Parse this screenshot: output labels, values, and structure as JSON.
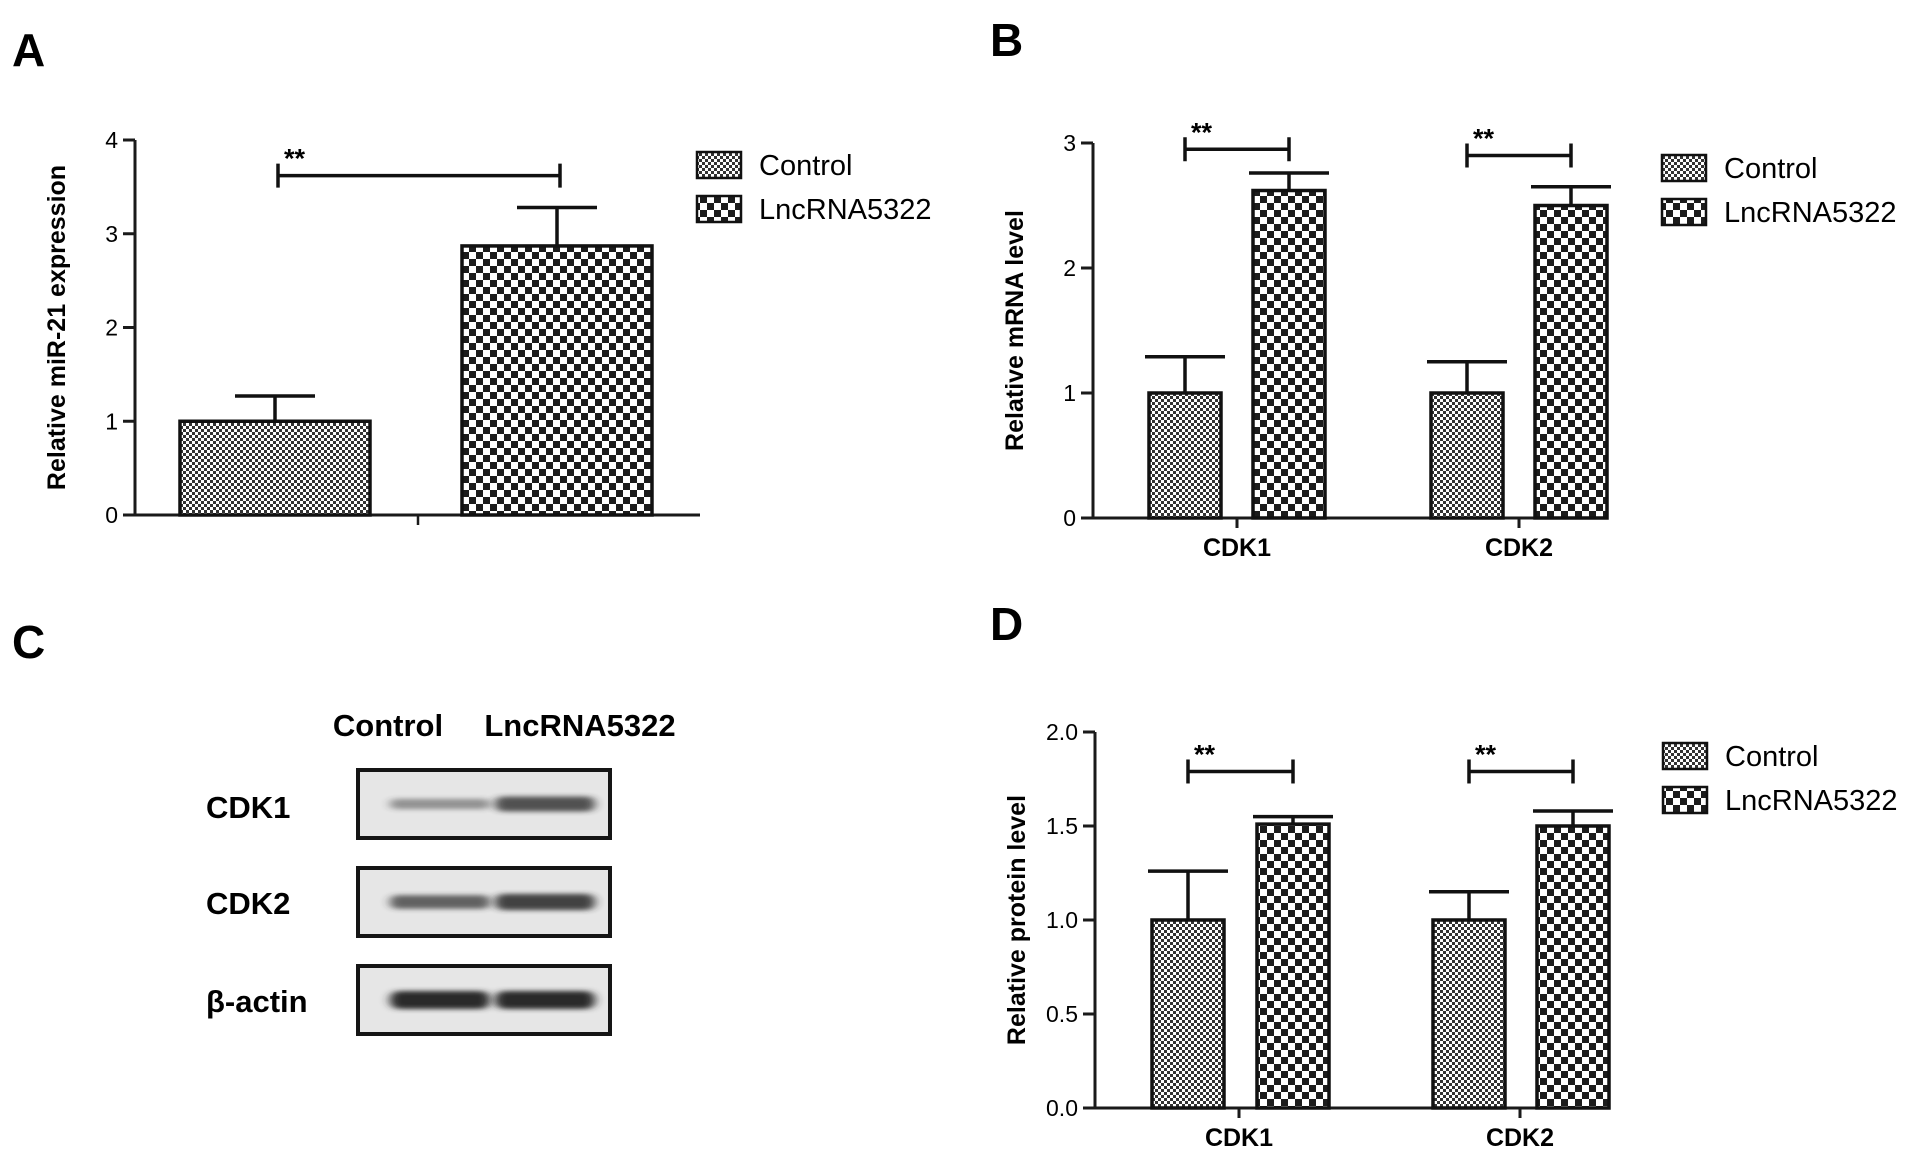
{
  "panels": {
    "a": "A",
    "b": "B",
    "c": "C",
    "d": "D"
  },
  "colors": {
    "axis": "#1a1a1a",
    "bar_edge": "#111111",
    "pattern_dark": "#333333",
    "pattern_light": "#ffffff",
    "blot_bg": "#e6e6e6",
    "band": "#2a2a2a"
  },
  "chart_data": [
    {
      "panel": "A",
      "type": "bar",
      "ylabel": "Relative miR-21 expression",
      "ylim": [
        0,
        4
      ],
      "yticks": [
        "0",
        "1",
        "2",
        "3",
        "4"
      ],
      "categories": [
        ""
      ],
      "series": [
        {
          "name": "Control",
          "values": [
            1.0
          ],
          "errors": [
            0.27
          ],
          "pattern": "fine-checker"
        },
        {
          "name": "LncRNA5322",
          "values": [
            2.87
          ],
          "errors": [
            0.41
          ],
          "pattern": "coarse-checker"
        }
      ],
      "significance": [
        {
          "label": "**",
          "between": [
            "Control",
            "LncRNA5322"
          ],
          "y": 3.62
        }
      ],
      "legend": {
        "position": "top-right",
        "entries": [
          "Control",
          "LncRNA5322"
        ]
      }
    },
    {
      "panel": "B",
      "type": "bar",
      "ylabel": "Relative mRNA level",
      "ylim": [
        0,
        3
      ],
      "yticks": [
        "0",
        "1",
        "2",
        "3"
      ],
      "categories": [
        "CDK1",
        "CDK2"
      ],
      "series": [
        {
          "name": "Control",
          "values": [
            1.0,
            1.0
          ],
          "errors": [
            0.29,
            0.25
          ],
          "pattern": "fine-checker"
        },
        {
          "name": "LncRNA5322",
          "values": [
            2.62,
            2.5
          ],
          "errors": [
            0.14,
            0.15
          ],
          "pattern": "coarse-checker"
        }
      ],
      "significance": [
        {
          "label": "**",
          "category": "CDK1",
          "y": 2.95
        },
        {
          "label": "**",
          "category": "CDK2",
          "y": 2.9
        }
      ],
      "legend": {
        "position": "top-right",
        "entries": [
          "Control",
          "LncRNA5322"
        ]
      }
    },
    {
      "panel": "D",
      "type": "bar",
      "ylabel": "Relative protein level",
      "ylim": [
        0,
        2
      ],
      "yticks": [
        "0.0",
        "0.5",
        "1.0",
        "1.5",
        "2.0"
      ],
      "categories": [
        "CDK1",
        "CDK2"
      ],
      "series": [
        {
          "name": "Control",
          "values": [
            1.0,
            1.0
          ],
          "errors": [
            0.26,
            0.15
          ],
          "pattern": "fine-checker"
        },
        {
          "name": "LncRNA5322",
          "values": [
            1.51,
            1.5
          ],
          "errors": [
            0.04,
            0.08
          ],
          "pattern": "coarse-checker"
        }
      ],
      "significance": [
        {
          "label": "**",
          "category": "CDK1",
          "y": 1.79
        },
        {
          "label": "**",
          "category": "CDK2",
          "y": 1.79
        }
      ],
      "legend": {
        "position": "top-right",
        "entries": [
          "Control",
          "LncRNA5322"
        ]
      }
    }
  ],
  "western_blot": {
    "panel": "C",
    "columns": [
      "Control",
      "LncRNA5322"
    ],
    "rows": [
      {
        "label": "CDK1",
        "intensities": [
          0.35,
          0.75
        ]
      },
      {
        "label": "CDK2",
        "intensities": [
          0.65,
          0.85
        ]
      },
      {
        "label": "β-actin",
        "intensities": [
          1.0,
          1.0
        ]
      }
    ]
  }
}
